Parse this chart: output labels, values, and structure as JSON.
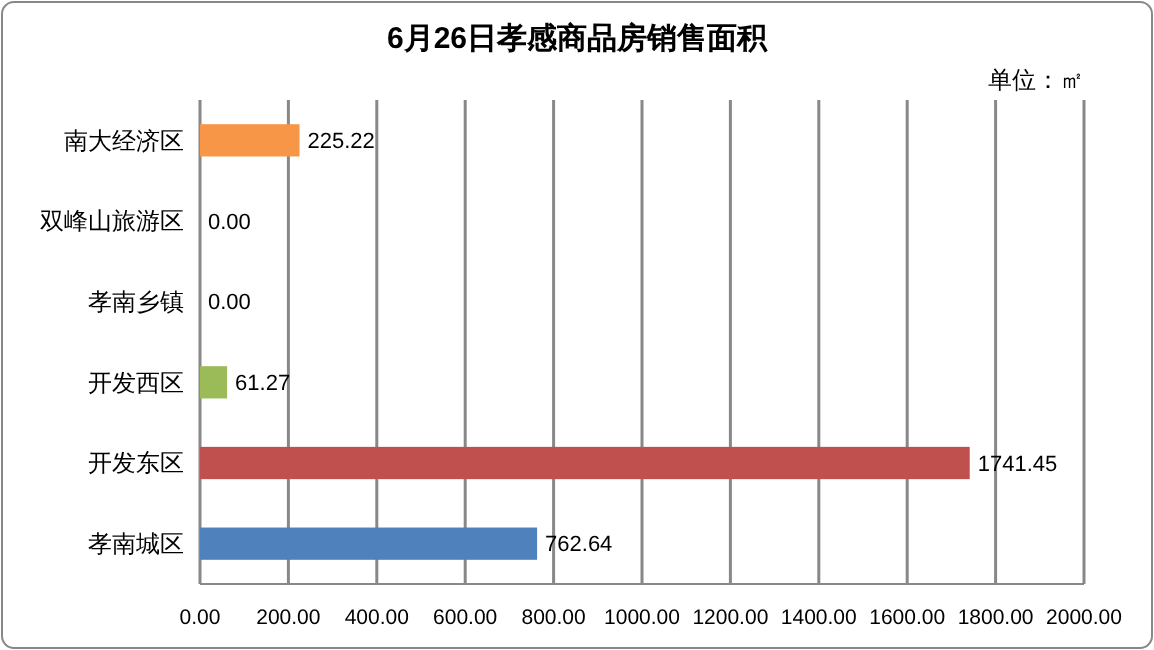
{
  "chart_data": {
    "type": "bar",
    "orientation": "horizontal",
    "title": "6月26日孝感商品房销售面积",
    "subtitle": "单位：㎡",
    "categories": [
      "南大经济区",
      "双峰山旅游区",
      "孝南乡镇",
      "开发西区",
      "开发东区",
      "孝南城区"
    ],
    "values": [
      225.22,
      0,
      0,
      61.27,
      1741.45,
      762.64
    ],
    "colors": [
      "#f79646",
      "#8064a2",
      "#4bacc6",
      "#9bbb59",
      "#c0504d",
      "#4f81bd"
    ],
    "value_labels": [
      "225.22",
      "0.00",
      "0.00",
      "61.27",
      "1741.45",
      "762.64"
    ],
    "xlim": [
      0,
      2000
    ],
    "xticks": [
      {
        "value": 0,
        "label": "0.00"
      },
      {
        "value": 200,
        "label": "200.00"
      },
      {
        "value": 400,
        "label": "400.00"
      },
      {
        "value": 600,
        "label": "600.00"
      },
      {
        "value": 800,
        "label": "800.00"
      },
      {
        "value": 1000,
        "label": "1000.00"
      },
      {
        "value": 1200,
        "label": "1200.00"
      },
      {
        "value": 1400,
        "label": "1400.00"
      },
      {
        "value": 1600,
        "label": "1600.00"
      },
      {
        "value": 1800,
        "label": "1800.00"
      },
      {
        "value": 2000,
        "label": "2000.00"
      }
    ],
    "grid": "x"
  }
}
